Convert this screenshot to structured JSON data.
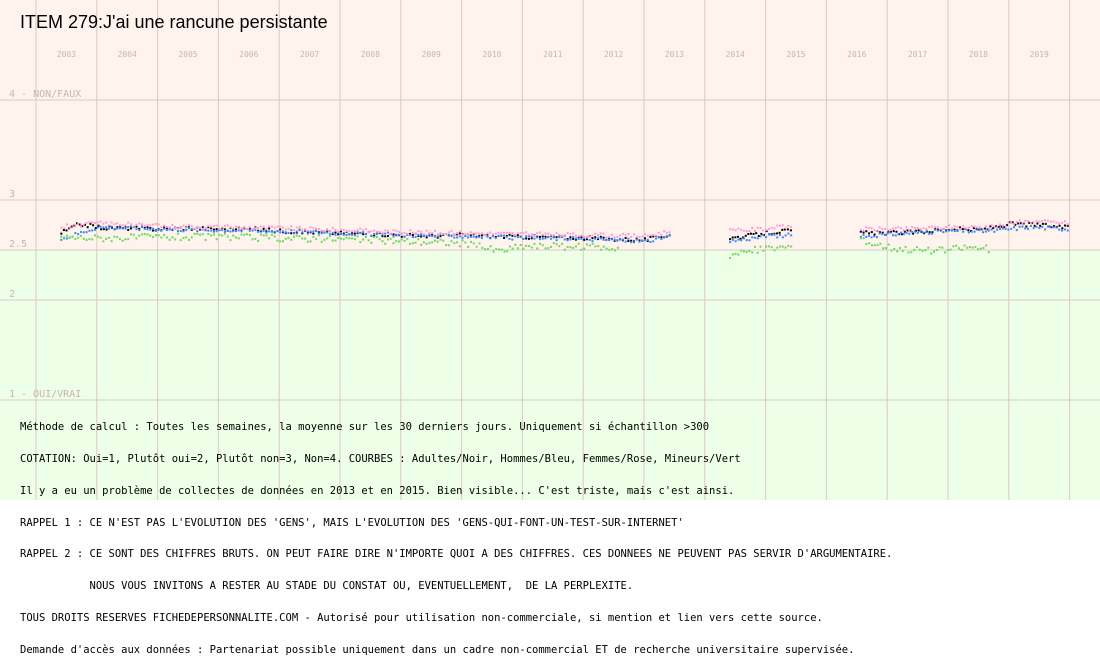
{
  "title": "ITEM 279:J'ai une rancune persistante",
  "colors": {
    "upper_bg": "#fff3ee",
    "lower_bg": "#eeffe8",
    "grid": "#dcc8c4",
    "tick_text": "#c8b4b0",
    "adultes": "#000000",
    "hommes": "#3a86ff",
    "femmes": "#ff9ad5",
    "mineurs": "#66dd55"
  },
  "notes": [
    "Méthode de calcul : Toutes les semaines, la moyenne sur les 30 derniers jours. Uniquement si échantillon >300",
    "COTATION: Oui=1, Plutôt oui=2, Plutôt non=3, Non=4. COURBES : Adultes/Noir, Hommes/Bleu, Femmes/Rose, Mineurs/Vert",
    "Il y a eu un problème de collectes de données en 2013 et en 2015. Bien visible... C'est triste, mais c'est ainsi.",
    "RAPPEL 1 : CE N'EST PAS L'EVOLUTION DES 'GENS', MAIS L'EVOLUTION DES 'GENS-QUI-FONT-UN-TEST-SUR-INTERNET'",
    "RAPPEL 2 : CE SONT DES CHIFFRES BRUTS. ON PEUT FAIRE DIRE N'IMPORTE QUOI A DES CHIFFRES. CES DONNEES NE PEUVENT PAS SERVIR D'ARGUMENTAIRE.",
    "           NOUS VOUS INVITONS A RESTER AU STADE DU CONSTAT OU, EVENTUELLEMENT,  DE LA PERPLEXITE.",
    "TOUS DROITS RESERVES FICHEDEPERSONNALITE.COM - Autorisé pour utilisation non-commerciale, si mention et lien vers cette source.",
    "Demande d'accès aux données : Partenariat possible uniquement dans un cadre non-commercial ET de recherche universitaire supervisée."
  ],
  "chart_data": {
    "type": "scatter",
    "x_years": [
      "2003",
      "2004",
      "2005",
      "2006",
      "2007",
      "2008",
      "2009",
      "2010",
      "2011",
      "2012",
      "2013",
      "2014",
      "2015",
      "2016",
      "2017",
      "2018",
      "2019"
    ],
    "y_ticks": [
      {
        "value": 4,
        "label": "4 - NON/FAUX"
      },
      {
        "value": 3,
        "label": "3"
      },
      {
        "value": 2.5,
        "label": "2.5"
      },
      {
        "value": 2,
        "label": "2"
      },
      {
        "value": 1,
        "label": "1 - OUI/VRAI"
      }
    ],
    "ylim": [
      1,
      4
    ],
    "xlim": [
      2002.5,
      2020.0
    ],
    "grid": true,
    "background_split_value": 2.5,
    "series": [
      {
        "name": "Adultes",
        "color_key": "adultes",
        "segments": [
          {
            "x": [
              2002.9,
              2003.2,
              2003.6,
              2004.0,
              2004.5,
              2005.0,
              2005.5,
              2006.0,
              2006.5,
              2007.0,
              2007.5,
              2008.0,
              2008.5,
              2009.0,
              2009.5,
              2010.0,
              2010.5,
              2011.0,
              2011.5,
              2012.0,
              2012.5,
              2012.95
            ],
            "y": [
              2.68,
              2.77,
              2.73,
              2.73,
              2.72,
              2.73,
              2.72,
              2.72,
              2.7,
              2.69,
              2.68,
              2.67,
              2.66,
              2.65,
              2.66,
              2.65,
              2.64,
              2.64,
              2.63,
              2.62,
              2.61,
              2.67
            ]
          },
          {
            "x": [
              2013.9,
              2014.2,
              2014.5,
              2014.8,
              2014.95
            ],
            "y": [
              2.63,
              2.65,
              2.68,
              2.7,
              2.7
            ]
          },
          {
            "x": [
              2016.05,
              2016.5,
              2017.0,
              2017.5,
              2018.0,
              2018.5,
              2019.0,
              2019.5
            ],
            "y": [
              2.68,
              2.68,
              2.69,
              2.72,
              2.71,
              2.77,
              2.76,
              2.73
            ]
          }
        ]
      },
      {
        "name": "Hommes",
        "color_key": "hommes",
        "segments": [
          {
            "x": [
              2002.9,
              2003.5,
              2004.5,
              2005.5,
              2006.5,
              2007.5,
              2008.5,
              2009.5,
              2010.5,
              2011.5,
              2012.5,
              2012.95
            ],
            "y": [
              2.62,
              2.74,
              2.72,
              2.71,
              2.7,
              2.68,
              2.66,
              2.65,
              2.63,
              2.62,
              2.6,
              2.64
            ]
          },
          {
            "x": [
              2013.9,
              2014.4,
              2014.95
            ],
            "y": [
              2.6,
              2.64,
              2.66
            ]
          },
          {
            "x": [
              2016.05,
              2016.8,
              2017.5,
              2018.2,
              2018.8,
              2019.5
            ],
            "y": [
              2.64,
              2.68,
              2.7,
              2.7,
              2.74,
              2.72
            ]
          }
        ]
      },
      {
        "name": "Femmes",
        "color_key": "femmes",
        "segments": [
          {
            "x": [
              2002.9,
              2003.5,
              2004.5,
              2005.5,
              2006.5,
              2007.5,
              2008.5,
              2009.5,
              2010.5,
              2011.5,
              2012.5,
              2012.95
            ],
            "y": [
              2.74,
              2.78,
              2.75,
              2.74,
              2.73,
              2.71,
              2.69,
              2.68,
              2.67,
              2.66,
              2.65,
              2.7
            ]
          },
          {
            "x": [
              2013.9,
              2014.4,
              2014.95
            ],
            "y": [
              2.7,
              2.72,
              2.75
            ]
          },
          {
            "x": [
              2016.05,
              2016.8,
              2017.5,
              2018.2,
              2018.8,
              2019.5
            ],
            "y": [
              2.72,
              2.72,
              2.74,
              2.74,
              2.8,
              2.78
            ]
          }
        ]
      },
      {
        "name": "Mineurs",
        "color_key": "mineurs",
        "segments": [
          {
            "x": [
              2002.9,
              2003.5,
              2004.5,
              2005.5,
              2006.5,
              2007.5,
              2008.5,
              2009.5,
              2010.1,
              2010.5,
              2011.5,
              2012.1
            ],
            "y": [
              2.64,
              2.63,
              2.64,
              2.64,
              2.63,
              2.62,
              2.6,
              2.58,
              2.5,
              2.55,
              2.54,
              2.53
            ]
          },
          {
            "x": [
              2013.9,
              2014.4,
              2014.95
            ],
            "y": [
              2.46,
              2.52,
              2.55
            ]
          },
          {
            "x": [
              2016.05,
              2016.6,
              2017.3,
              2017.8,
              2018.2
            ],
            "y": [
              2.6,
              2.53,
              2.5,
              2.54,
              2.52
            ]
          }
        ]
      }
    ]
  }
}
